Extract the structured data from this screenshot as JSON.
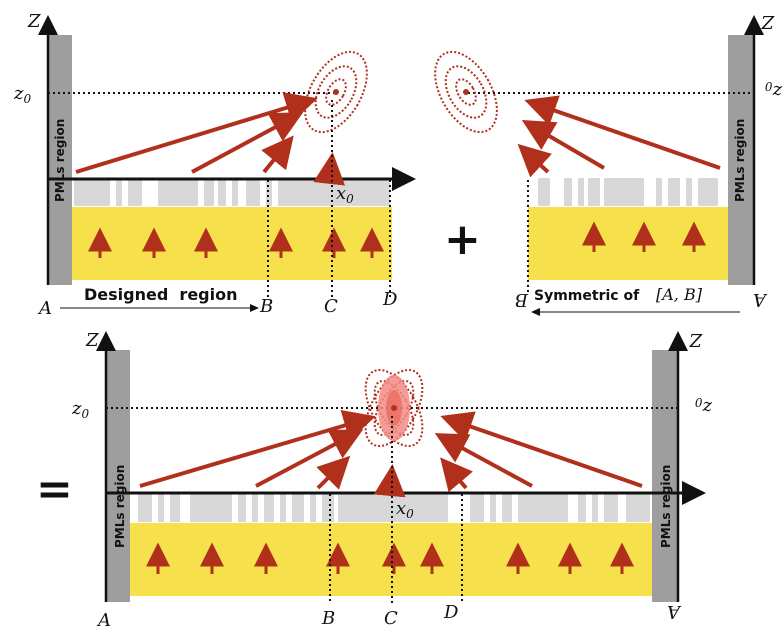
{
  "panel_a": {
    "z_axis": "Z",
    "z0": "z",
    "z0_sub": "0",
    "x0": "x",
    "x0_sub": "0",
    "pml_label": "PMLs region",
    "region_label": "Designed  region",
    "point_a": "A",
    "point_b": "B",
    "point_c": "C",
    "point_d": "D"
  },
  "panel_b": {
    "z_axis": "Z",
    "z0": "z",
    "z0_sub": "0",
    "pml_label": "PMLs region",
    "region_label": "Symmetric of",
    "region_math": "[A, B]",
    "point_a": "A",
    "point_b": "B"
  },
  "panel_c": {
    "z_axis": "Z",
    "z0": "z",
    "z0_sub": "0",
    "x0": "x",
    "x0_sub": "0",
    "pml_label": "PMLs region",
    "point_a": "A",
    "point_b": "B",
    "point_c": "C",
    "point_d": "D"
  },
  "operators": {
    "plus": "+",
    "equals": "="
  },
  "colors": {
    "pml": "#9e9e9e",
    "substrate": "#f6e04b",
    "grating": "#d8d8d8",
    "arrow": "#b0301c",
    "focus_fill": "#f28b82"
  }
}
